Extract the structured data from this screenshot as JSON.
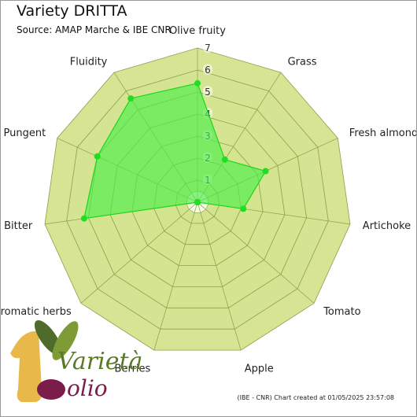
{
  "header": {
    "title": "Variety DRITTA",
    "subtitle": "Source: AMAP Marche & IBE CNR"
  },
  "footer": {
    "credit": "(IBE - CNR) Chart created at 01/05/2025 23:57:08"
  },
  "logo": {
    "text_line1": "Varietà",
    "text_line2": "olio"
  },
  "colors": {
    "ring_fill": "#d4e38e",
    "ring_stroke": "#8aa04a",
    "series_fill": "#4cee4c",
    "series_stroke": "#19d619",
    "point": "#22dd22"
  },
  "chart_data": {
    "type": "radar",
    "title": "Variety DRITTA",
    "subtitle": "Source: AMAP Marche & IBE CNR",
    "axes": [
      "Olive fruity",
      "Grass",
      "Fresh almond",
      "Artichoke",
      "Tomato",
      "Apple",
      "Berries",
      "Aromatic herbs",
      "Bitter",
      "Pungent",
      "Fluidity"
    ],
    "scale_ticks": [
      1,
      2,
      3,
      4,
      5,
      6,
      7
    ],
    "range": [
      0,
      7
    ],
    "series": [
      {
        "values": [
          5.4,
          2.3,
          3.4,
          2.1,
          0,
          0,
          0,
          0,
          5.2,
          5.0,
          5.6
        ]
      }
    ],
    "legend": "none",
    "grid": true
  }
}
